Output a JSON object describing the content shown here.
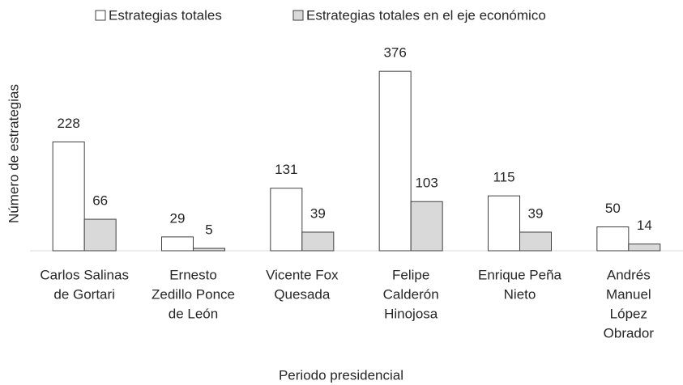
{
  "chart_data": {
    "type": "bar",
    "y_label": "Número de estrategias",
    "x_label": "Periodo presidencial",
    "categories": [
      [
        "Carlos Salinas",
        "de Gortari"
      ],
      [
        "Ernesto",
        "Zedillo Ponce",
        "de León"
      ],
      [
        "Vicente Fox",
        "Quesada"
      ],
      [
        "Felipe",
        "Calderón",
        "Hinojosa"
      ],
      [
        "Enrique Peña",
        "Nieto"
      ],
      [
        "Andrés",
        "Manuel",
        "López",
        "Obrador"
      ]
    ],
    "series": [
      {
        "name": "Estrategias totales",
        "color": "#ffffff",
        "values": [
          228,
          29,
          131,
          376,
          115,
          50
        ]
      },
      {
        "name": "Estrategias totales en el eje económico",
        "color": "#d9d9d9",
        "values": [
          66,
          5,
          39,
          103,
          39,
          14
        ]
      }
    ],
    "ylim": [
      0,
      400
    ],
    "legend": "top"
  }
}
